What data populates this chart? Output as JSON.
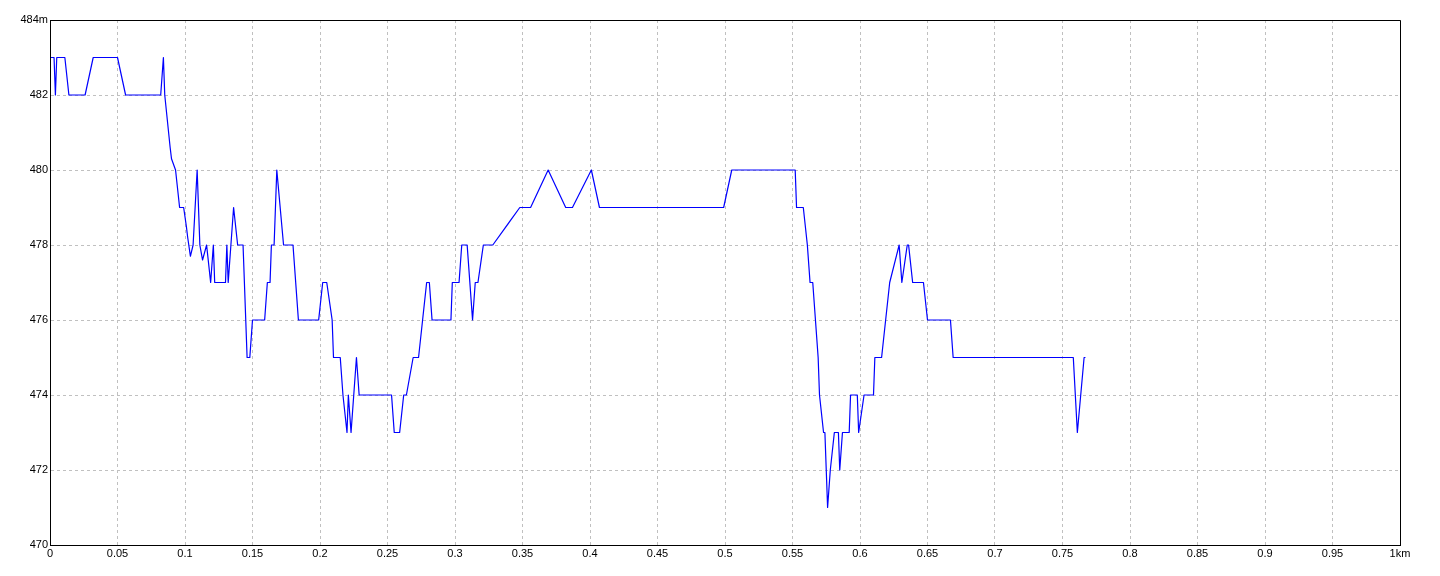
{
  "chart_data": {
    "type": "line",
    "x": [
      0,
      0.003,
      0.004,
      0.005,
      0.007,
      0.011,
      0.014,
      0.026,
      0.032,
      0.05,
      0.056,
      0.082,
      0.084,
      0.085,
      0.089,
      0.09,
      0.093,
      0.096,
      0.099,
      0.101,
      0.102,
      0.104,
      0.106,
      0.109,
      0.111,
      0.113,
      0.116,
      0.119,
      0.121,
      0.122,
      0.13,
      0.131,
      0.132,
      0.134,
      0.136,
      0.139,
      0.143,
      0.146,
      0.148,
      0.15,
      0.159,
      0.161,
      0.163,
      0.164,
      0.166,
      0.168,
      0.173,
      0.18,
      0.184,
      0.199,
      0.202,
      0.205,
      0.209,
      0.21,
      0.215,
      0.217,
      0.22,
      0.221,
      0.223,
      0.227,
      0.229,
      0.253,
      0.255,
      0.259,
      0.262,
      0.264,
      0.269,
      0.273,
      0.276,
      0.279,
      0.281,
      0.283,
      0.297,
      0.298,
      0.303,
      0.305,
      0.309,
      0.313,
      0.315,
      0.317,
      0.321,
      0.328,
      0.348,
      0.356,
      0.369,
      0.382,
      0.387,
      0.401,
      0.407,
      0.499,
      0.505,
      0.552,
      0.553,
      0.558,
      0.561,
      0.563,
      0.565,
      0.567,
      0.569,
      0.57,
      0.573,
      0.574,
      0.575,
      0.576,
      0.578,
      0.581,
      0.584,
      0.585,
      0.587,
      0.592,
      0.593,
      0.598,
      0.599,
      0.603,
      0.61,
      0.611,
      0.616,
      0.622,
      0.629,
      0.631,
      0.635,
      0.636,
      0.639,
      0.647,
      0.65,
      0.667,
      0.669,
      0.758,
      0.761,
      0.766,
      0.767
    ],
    "series": [
      {
        "color": "#0000ff",
        "values": [
          483,
          483,
          482,
          483,
          483,
          483,
          482,
          482,
          483,
          483,
          482,
          482,
          483,
          482,
          480.6,
          480.3,
          480,
          479,
          479,
          478.5,
          478.2,
          477.7,
          478,
          480,
          478,
          477.6,
          478,
          477,
          478,
          477,
          477,
          478,
          477,
          478,
          479,
          478,
          478,
          475,
          475,
          476,
          476,
          477,
          477,
          478,
          478,
          480,
          478,
          478,
          476,
          476,
          477,
          477,
          476,
          475,
          475,
          474,
          473,
          474,
          473,
          475,
          474,
          474,
          473,
          473,
          474,
          474,
          475,
          475,
          476,
          477,
          477,
          476,
          476,
          477,
          477,
          478,
          478,
          476,
          477,
          477,
          478,
          478,
          479,
          479,
          480,
          479,
          479,
          480,
          479,
          479,
          480,
          480,
          479,
          479,
          478,
          477,
          477,
          476,
          475,
          474,
          473,
          473,
          472,
          471,
          472,
          473,
          473,
          472,
          473,
          473,
          474,
          474,
          473,
          474,
          474,
          475,
          475,
          477,
          478,
          477,
          478,
          478,
          477,
          477,
          476,
          476,
          475,
          475,
          473,
          475,
          475
        ]
      }
    ],
    "xlim": [
      0,
      1
    ],
    "xticks": [
      0,
      0.05,
      0.1,
      0.15,
      0.2,
      0.25,
      0.3,
      0.35,
      0.4,
      0.45,
      0.5,
      0.55,
      0.6,
      0.65,
      0.7,
      0.75,
      0.8,
      0.85,
      0.9,
      0.95,
      {
        "value": 1,
        "label": "1km"
      }
    ],
    "ylim": [
      470,
      484
    ],
    "yticks": [
      470,
      472,
      474,
      476,
      478,
      480,
      482,
      {
        "value": 484,
        "label": "484m"
      }
    ],
    "grid": true,
    "legend": false,
    "marker": "none",
    "line_style": "solid"
  }
}
